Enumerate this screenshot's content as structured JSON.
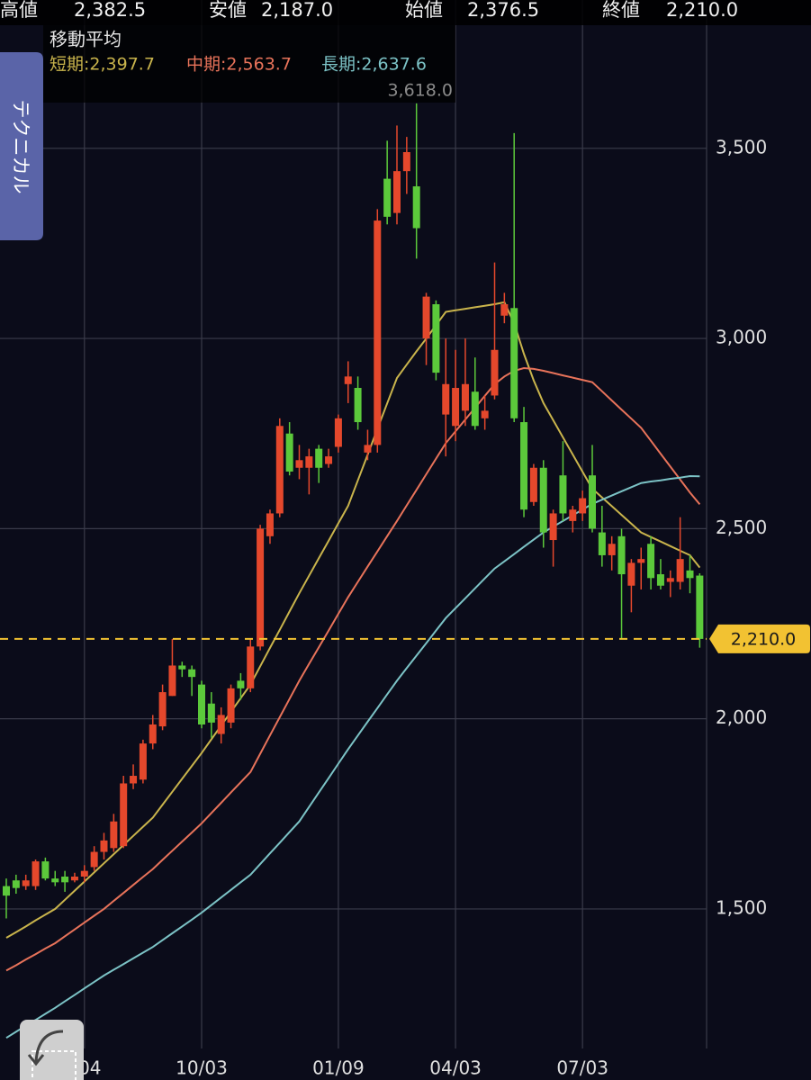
{
  "quote_bar": [
    {
      "label": "高値",
      "value": "2,382.5"
    },
    {
      "label": "安値",
      "value": "2,187.0"
    },
    {
      "label": "始値",
      "value": "2,376.5"
    },
    {
      "label": "終値",
      "value": "2,210.0"
    }
  ],
  "technical_tab": "テクニカル",
  "chart_data": {
    "type": "candlestick",
    "legend_title": "移動平均",
    "annotation": "3,618.0",
    "up_color": "#e5482c",
    "down_color": "#5cc93b",
    "grid": true,
    "categories": [
      null,
      null,
      null,
      null,
      null,
      null,
      null,
      null,
      "04",
      null,
      null,
      null,
      null,
      null,
      null,
      null,
      null,
      null,
      null,
      null,
      "10/03",
      null,
      null,
      null,
      null,
      null,
      null,
      null,
      null,
      null,
      null,
      null,
      null,
      null,
      "01/09",
      null,
      null,
      null,
      null,
      null,
      null,
      null,
      null,
      null,
      null,
      null,
      "04/03",
      null,
      null,
      null,
      null,
      null,
      null,
      null,
      null,
      null,
      null,
      null,
      null,
      "07/03",
      null,
      null,
      null,
      null,
      null,
      null,
      null,
      null,
      null,
      null,
      null,
      null
    ],
    "open": [
      1560,
      1575,
      1560,
      1560,
      1625,
      1580,
      1585,
      1575,
      1585,
      1610,
      1650,
      1660,
      1665,
      1830,
      1840,
      1935,
      1980,
      2060,
      2140,
      2130,
      2090,
      2040,
      1960,
      1990,
      2100,
      2080,
      2190,
      2480,
      2540,
      2750,
      2660,
      2660,
      2710,
      2670,
      2715,
      2880,
      2870,
      2700,
      2720,
      3420,
      3330,
      3440,
      3400,
      3000,
      3090,
      2800,
      2770,
      2810,
      2860,
      2790,
      2850,
      3060,
      3080,
      2780,
      2570,
      2660,
      2470,
      2640,
      2520,
      2540,
      2640,
      2490,
      2430,
      2480,
      2350,
      2410,
      2460,
      2380,
      2360,
      2360,
      2390,
      2376.5
    ],
    "high": [
      1580,
      1590,
      1590,
      1630,
      1635,
      1600,
      1600,
      1595,
      1615,
      1665,
      1700,
      1750,
      1850,
      1880,
      1945,
      2010,
      2090,
      2210,
      2150,
      2140,
      2100,
      2070,
      2030,
      2090,
      2120,
      2210,
      2510,
      2550,
      2790,
      2780,
      2720,
      2710,
      2720,
      2710,
      2800,
      2940,
      2900,
      2760,
      3340,
      3520,
      3560,
      3530,
      3618,
      3120,
      3100,
      3000,
      2970,
      3000,
      2950,
      2850,
      3200,
      3120,
      3540,
      2820,
      2670,
      2680,
      2550,
      2730,
      2560,
      2600,
      2720,
      2560,
      2480,
      2500,
      2420,
      2450,
      2480,
      2420,
      2390,
      2530,
      2430,
      2382.5
    ],
    "low": [
      1475,
      1540,
      1550,
      1550,
      1575,
      1560,
      1545,
      1570,
      1570,
      1600,
      1630,
      1650,
      1660,
      1815,
      1830,
      1920,
      1970,
      2060,
      2110,
      2060,
      1975,
      1950,
      1935,
      1975,
      2050,
      2070,
      2180,
      2460,
      2530,
      2640,
      2630,
      2590,
      2620,
      2660,
      2700,
      2830,
      2760,
      2680,
      2700,
      3300,
      3300,
      3380,
      3210,
      2930,
      2890,
      2690,
      2730,
      2770,
      2760,
      2760,
      2840,
      3040,
      2780,
      2530,
      2560,
      2450,
      2400,
      2520,
      2490,
      2520,
      2490,
      2400,
      2390,
      2210,
      2280,
      2340,
      2340,
      2340,
      2320,
      2340,
      2330,
      2187
    ],
    "close": [
      1535,
      1555,
      1575,
      1625,
      1580,
      1570,
      1570,
      1585,
      1600,
      1650,
      1680,
      1730,
      1830,
      1850,
      1935,
      1985,
      2070,
      2140,
      2130,
      2110,
      1985,
      1990,
      2010,
      2080,
      2080,
      2190,
      2500,
      2540,
      2770,
      2650,
      2680,
      2690,
      2660,
      2690,
      2790,
      2900,
      2780,
      2720,
      3310,
      3320,
      3440,
      3490,
      3290,
      3110,
      2910,
      2880,
      2870,
      2880,
      2770,
      2810,
      2970,
      3090,
      2790,
      2550,
      2660,
      2490,
      2540,
      2540,
      2550,
      2580,
      2500,
      2430,
      2460,
      2380,
      2410,
      2420,
      2370,
      2350,
      2370,
      2420,
      2370,
      2210
    ],
    "overlays": [
      {
        "name": "短期:2,397.7",
        "color": "#c9b44c",
        "values": [
          1424,
          1439,
          1454,
          1470,
          1485,
          1500,
          1524,
          1548,
          1572,
          1596,
          1620,
          1644,
          1668,
          1692,
          1716,
          1740,
          1774,
          1808,
          1842,
          1876,
          1910,
          1946,
          1982,
          2018,
          2054,
          2090,
          2138,
          2186,
          2234,
          2282,
          2330,
          2376,
          2422,
          2468,
          2514,
          2560,
          2627,
          2694,
          2762,
          2829,
          2896,
          2931,
          2966,
          3000,
          3035,
          3070,
          3074,
          3078,
          3082,
          3086,
          3090,
          3095,
          3040,
          2960,
          2890,
          2830,
          2785,
          2740,
          2695,
          2650,
          2605,
          2582,
          2559,
          2536,
          2513,
          2490,
          2478,
          2466,
          2454,
          2442,
          2430,
          2397.7
        ]
      },
      {
        "name": "中期:2,563.7",
        "color": "#e8735a",
        "values": [
          1338,
          1352,
          1367,
          1381,
          1396,
          1410,
          1428,
          1446,
          1464,
          1482,
          1500,
          1521,
          1542,
          1563,
          1584,
          1605,
          1629,
          1653,
          1677,
          1701,
          1725,
          1752,
          1779,
          1806,
          1833,
          1860,
          1908,
          1956,
          2004,
          2052,
          2100,
          2144,
          2188,
          2232,
          2276,
          2320,
          2360,
          2400,
          2440,
          2480,
          2520,
          2561,
          2602,
          2643,
          2684,
          2725,
          2756,
          2787,
          2818,
          2849,
          2880,
          2900,
          2915,
          2922,
          2920,
          2915,
          2909,
          2903,
          2897,
          2891,
          2885,
          2861,
          2837,
          2813,
          2789,
          2765,
          2731,
          2697,
          2663,
          2629,
          2595,
          2563.7
        ]
      },
      {
        "name": "長期:2,637.6",
        "color": "#7cc3c6",
        "values": [
          1161,
          1177,
          1193,
          1208,
          1224,
          1240,
          1257,
          1274,
          1291,
          1308,
          1325,
          1340,
          1355,
          1370,
          1385,
          1400,
          1418,
          1436,
          1454,
          1472,
          1490,
          1510,
          1530,
          1550,
          1570,
          1590,
          1618,
          1646,
          1674,
          1702,
          1730,
          1768,
          1806,
          1844,
          1882,
          1920,
          1956,
          1992,
          2028,
          2064,
          2100,
          2133,
          2166,
          2199,
          2232,
          2265,
          2291,
          2317,
          2343,
          2369,
          2395,
          2414,
          2433,
          2452,
          2471,
          2490,
          2505,
          2520,
          2535,
          2550,
          2565,
          2576,
          2587,
          2598,
          2609,
          2620,
          2624,
          2627,
          2631,
          2634,
          2638,
          2637.6
        ]
      }
    ],
    "last_price": {
      "value": 2210,
      "label": "2,210.0",
      "color": "#f2c232"
    },
    "ylim": [
      1133,
      3890
    ],
    "yticks": [
      {
        "value": 1500,
        "label": "1,500"
      },
      {
        "value": 2000,
        "label": "2,000"
      },
      {
        "value": 2500,
        "label": "2,500"
      },
      {
        "value": 3000,
        "label": "3,000"
      },
      {
        "value": 3500,
        "label": "3,500"
      }
    ]
  }
}
